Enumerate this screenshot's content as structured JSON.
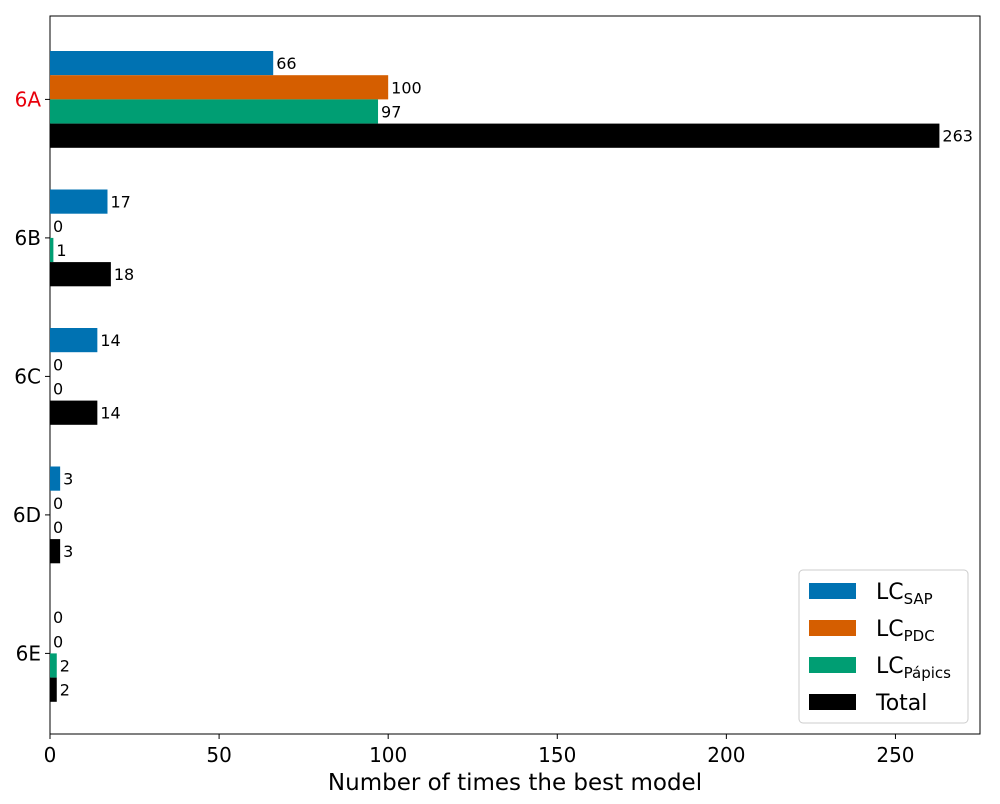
{
  "chart_data": {
    "type": "bar",
    "orientation": "horizontal",
    "categories": [
      "6A",
      "6B",
      "6C",
      "6D",
      "6E"
    ],
    "highlighted_category": "6A",
    "highlight_color": "#e8000b",
    "series": [
      {
        "name": "LC",
        "name_subscript": "SAP",
        "color": "#0072b2",
        "values": [
          66,
          17,
          14,
          3,
          0
        ]
      },
      {
        "name": "LC",
        "name_subscript": "PDC",
        "color": "#d55e00",
        "values": [
          100,
          0,
          0,
          0,
          0
        ]
      },
      {
        "name": "LC",
        "name_subscript": "Pápics",
        "color": "#009e73",
        "values": [
          97,
          1,
          0,
          0,
          2
        ]
      },
      {
        "name": "Total",
        "name_subscript": "",
        "color": "#000000",
        "values": [
          263,
          18,
          14,
          3,
          2
        ]
      }
    ],
    "xlabel": "Number of times the best model",
    "ylabel": "",
    "title": "",
    "xlim": [
      0,
      275
    ],
    "xticks": [
      0,
      50,
      100,
      150,
      200,
      250
    ],
    "grid": false,
    "legend_position": "lower right",
    "show_data_labels": true
  }
}
